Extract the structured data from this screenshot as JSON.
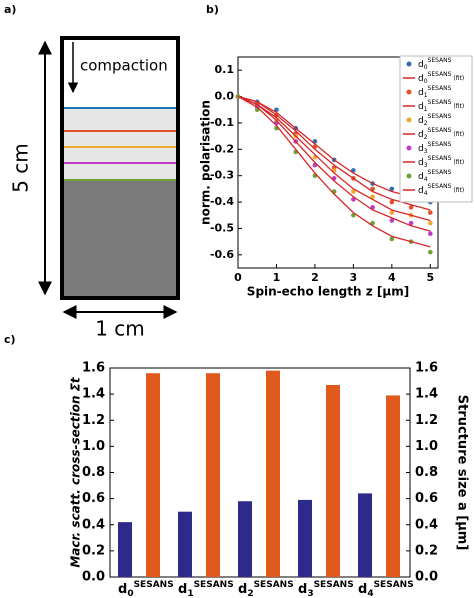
{
  "panel_a": {
    "label": "a)",
    "arrow_label": "compaction",
    "height_label": "5 cm",
    "width_label": "1 cm"
  },
  "chart_data": [
    {
      "type": "scatter-fit",
      "panel_label": "b)",
      "ylabel": "norm. polarisation",
      "xlabel": "Spin-echo length z [μm]",
      "x": [
        0,
        0.5,
        1,
        1.5,
        2,
        2.5,
        3,
        3.5,
        4,
        4.5,
        5
      ],
      "series": [
        {
          "name": "d0SESANS",
          "style": "scatter",
          "color": "#2f6fb5",
          "values": [
            0,
            -0.02,
            -0.05,
            -0.12,
            -0.17,
            -0.24,
            -0.28,
            -0.33,
            -0.35,
            -0.37,
            -0.4
          ]
        },
        {
          "name": "d0SESANS (fit)",
          "style": "line",
          "color": "#d62728",
          "values": [
            0,
            -0.02,
            -0.06,
            -0.12,
            -0.18,
            -0.24,
            -0.29,
            -0.33,
            -0.36,
            -0.38,
            -0.39
          ]
        },
        {
          "name": "d1SESANS",
          "style": "scatter",
          "color": "#e2512a",
          "values": [
            0,
            -0.03,
            -0.07,
            -0.14,
            -0.19,
            -0.27,
            -0.31,
            -0.35,
            -0.4,
            -0.42,
            -0.44
          ]
        },
        {
          "name": "d1SESANS (fit)",
          "style": "line",
          "color": "#d62728",
          "values": [
            0,
            -0.02,
            -0.07,
            -0.13,
            -0.2,
            -0.26,
            -0.31,
            -0.36,
            -0.39,
            -0.41,
            -0.43
          ]
        },
        {
          "name": "d2SESANS",
          "style": "scatter",
          "color": "#f0a830",
          "values": [
            0,
            -0.04,
            -0.09,
            -0.15,
            -0.23,
            -0.28,
            -0.36,
            -0.38,
            -0.44,
            -0.45,
            -0.48
          ]
        },
        {
          "name": "d2SESANS (fit)",
          "style": "line",
          "color": "#d62728",
          "values": [
            0,
            -0.03,
            -0.08,
            -0.15,
            -0.22,
            -0.29,
            -0.35,
            -0.39,
            -0.43,
            -0.45,
            -0.47
          ]
        },
        {
          "name": "d3SESANS",
          "style": "scatter",
          "color": "#c03cc8",
          "values": [
            0,
            -0.04,
            -0.1,
            -0.17,
            -0.26,
            -0.31,
            -0.39,
            -0.42,
            -0.47,
            -0.48,
            -0.52
          ]
        },
        {
          "name": "d3SESANS (fit)",
          "style": "line",
          "color": "#d62728",
          "values": [
            0,
            -0.03,
            -0.09,
            -0.17,
            -0.25,
            -0.32,
            -0.38,
            -0.43,
            -0.46,
            -0.49,
            -0.51
          ]
        },
        {
          "name": "d4SESANS",
          "style": "scatter",
          "color": "#6fa033",
          "values": [
            0,
            -0.05,
            -0.12,
            -0.21,
            -0.3,
            -0.36,
            -0.45,
            -0.48,
            -0.54,
            -0.55,
            -0.59
          ]
        },
        {
          "name": "d4SESANS (fit)",
          "style": "line",
          "color": "#d62728",
          "values": [
            0,
            -0.04,
            -0.11,
            -0.2,
            -0.29,
            -0.37,
            -0.44,
            -0.49,
            -0.53,
            -0.55,
            -0.57
          ]
        }
      ],
      "xlim": [
        0,
        5.2
      ],
      "xticks": [
        0,
        1,
        2,
        3,
        4,
        5
      ],
      "ylim": [
        -0.65,
        0.15
      ],
      "yticks": [
        0.1,
        {
          "value": 0,
          "label": "0.0"
        },
        -0.1,
        -0.2,
        -0.3,
        -0.4,
        -0.5,
        -0.6
      ],
      "legend": "upper right"
    },
    {
      "type": "bar",
      "panel_label": "c)",
      "categories": [
        "d0SESANS",
        "d1SESANS",
        "d2SESANS",
        "d3SESANS",
        "d4SESANS"
      ],
      "ylabel": "Macr. scatt. cross-section Σt",
      "y2label": "Structure size a [μm]",
      "series": [
        {
          "name": "Macr. scatt. cross-section Σt",
          "color": "#2e2a8c",
          "values": [
            0.42,
            0.5,
            0.58,
            0.59,
            0.64
          ]
        },
        {
          "name": "Structure size a [μm]",
          "color": "#e05a1e",
          "axis": "y2",
          "values": [
            1.56,
            1.56,
            1.58,
            1.47,
            1.39
          ]
        }
      ],
      "ylim": [
        0,
        1.6
      ],
      "yticks": [
        {
          "value": 0,
          "label": "0.0"
        },
        0.2,
        0.4,
        0.6,
        0.8,
        {
          "value": 1,
          "label": "1.0"
        },
        1.2,
        1.4,
        1.6
      ],
      "y2lim": [
        0,
        1.6
      ],
      "y2ticks": [
        {
          "value": 0,
          "label": "0.0"
        },
        0.2,
        0.4,
        0.6,
        0.8,
        {
          "value": 1,
          "label": "1.0"
        },
        1.2,
        1.4,
        1.6
      ]
    }
  ]
}
